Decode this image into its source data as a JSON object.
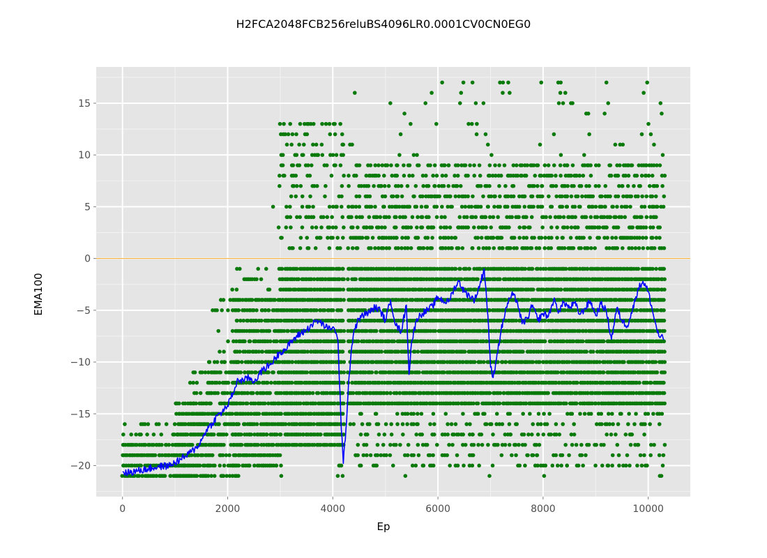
{
  "chart_data": {
    "type": "scatter",
    "title": "H2FCA2048FCB256reluBS4096LR0.0001CV0CN0EG0",
    "xlabel": "Ep",
    "ylabel": "EMA100",
    "xlim": [
      -500,
      10800
    ],
    "ylim": [
      -23,
      18.5
    ],
    "x_ticks": [
      0,
      2000,
      4000,
      6000,
      8000,
      10000
    ],
    "x_tick_labels": [
      "0",
      "2000",
      "4000",
      "6000",
      "8000",
      "10000"
    ],
    "y_ticks": [
      15,
      10,
      5,
      0,
      -5,
      -10,
      -15,
      -20
    ],
    "y_tick_labels": [
      "15",
      "10",
      "5",
      "0",
      "−5",
      "−10",
      "−15",
      "−20"
    ],
    "grid": true,
    "reference_line": {
      "y": 0,
      "color": "#f5a623"
    },
    "series": [
      {
        "kind": "scatter",
        "color": "#0a7a0a",
        "description_of_distribution": "episode scores, integers from -21 to 17, one per episode, over 0 to 10300 episodes",
        "bands": [
          {
            "x": [
              0,
              1300
            ],
            "y": [
              -21,
              -18
            ],
            "density": 0.9
          },
          {
            "x": [
              0,
              1300
            ],
            "y": [
              -17,
              -16
            ],
            "density": 0.2
          },
          {
            "x": [
              1000,
              1600
            ],
            "y": [
              -21,
              -14
            ],
            "density": 0.85
          },
          {
            "x": [
              1300,
              1700
            ],
            "y": [
              -17,
              -11
            ],
            "density": 0.3
          },
          {
            "x": [
              1600,
              2200
            ],
            "y": [
              -21,
              -10
            ],
            "density": 0.6
          },
          {
            "x": [
              1700,
              2100
            ],
            "y": [
              -9,
              -4
            ],
            "density": 0.15
          },
          {
            "x": [
              2100,
              3000
            ],
            "y": [
              -20,
              -4
            ],
            "density": 0.8
          },
          {
            "x": [
              2100,
              3000
            ],
            "y": [
              -3,
              -1
            ],
            "density": 0.25
          },
          {
            "x": [
              2100,
              3000
            ],
            "y": [
              1,
              6
            ],
            "density": 0.03
          },
          {
            "x": [
              3000,
              4200
            ],
            "y": [
              -18,
              -1
            ],
            "density": 0.95
          },
          {
            "x": [
              3000,
              4200
            ],
            "y": [
              1,
              13
            ],
            "density": 0.25
          },
          {
            "x": [
              4050,
              4250
            ],
            "y": [
              -21,
              -20
            ],
            "density": 0.5
          },
          {
            "x": [
              4300,
              10300
            ],
            "y": [
              -14,
              -1
            ],
            "density": 0.95
          },
          {
            "x": [
              4300,
              10300
            ],
            "y": [
              -20,
              -15
            ],
            "density": 0.25
          },
          {
            "x": [
              4300,
              10300
            ],
            "y": [
              1,
              9
            ],
            "density": 0.45
          },
          {
            "x": [
              4300,
              10300
            ],
            "y": [
              10,
              17
            ],
            "density": 0.04
          }
        ],
        "outliers": [
          {
            "x": 3020,
            "y": -21
          },
          {
            "x": 5380,
            "y": -21
          },
          {
            "x": 6980,
            "y": -21
          },
          {
            "x": 8020,
            "y": -21
          },
          {
            "x": 10220,
            "y": -21
          },
          {
            "x": 10250,
            "y": -21
          },
          {
            "x": 6080,
            "y": 17
          },
          {
            "x": 7180,
            "y": 17
          },
          {
            "x": 9980,
            "y": 17
          },
          {
            "x": 6440,
            "y": 16
          },
          {
            "x": 6420,
            "y": 15
          },
          {
            "x": 6720,
            "y": 15
          },
          {
            "x": 8300,
            "y": 15
          },
          {
            "x": 8380,
            "y": 15
          },
          {
            "x": 8530,
            "y": 15
          }
        ]
      },
      {
        "kind": "line",
        "name": "EMA100",
        "color": "#0000ff",
        "x": [
          0,
          100,
          300,
          500,
          700,
          900,
          1000,
          1100,
          1200,
          1300,
          1400,
          1500,
          1600,
          1700,
          1800,
          1900,
          2000,
          2100,
          2200,
          2300,
          2400,
          2500,
          2600,
          2700,
          2800,
          2900,
          3000,
          3100,
          3200,
          3300,
          3400,
          3500,
          3600,
          3700,
          3800,
          3900,
          4000,
          4050,
          4100,
          4150,
          4200,
          4250,
          4300,
          4350,
          4400,
          4500,
          4600,
          4700,
          4800,
          4900,
          5000,
          5100,
          5200,
          5300,
          5400,
          5450,
          5500,
          5600,
          5700,
          5800,
          5900,
          6000,
          6100,
          6200,
          6300,
          6400,
          6500,
          6600,
          6700,
          6800,
          6880,
          6950,
          7000,
          7050,
          7100,
          7200,
          7300,
          7400,
          7500,
          7600,
          7700,
          7800,
          7900,
          8000,
          8100,
          8200,
          8300,
          8400,
          8500,
          8600,
          8700,
          8800,
          8900,
          9000,
          9100,
          9200,
          9300,
          9400,
          9500,
          9600,
          9700,
          9800,
          9900,
          10000,
          10100,
          10200,
          10300
        ],
        "y": [
          -20.6,
          -20.7,
          -20.5,
          -20.3,
          -20.1,
          -20.0,
          -19.7,
          -19.4,
          -19.1,
          -18.7,
          -18.3,
          -17.6,
          -16.5,
          -16.0,
          -15.2,
          -14.8,
          -14.2,
          -13.0,
          -11.7,
          -11.8,
          -11.5,
          -11.9,
          -11.2,
          -10.6,
          -10.3,
          -9.7,
          -9.0,
          -8.8,
          -8.1,
          -7.6,
          -7.2,
          -6.9,
          -6.4,
          -6.0,
          -6.3,
          -6.8,
          -6.6,
          -7.2,
          -8.0,
          -15.0,
          -19.8,
          -16.5,
          -12.0,
          -9.0,
          -7.0,
          -5.8,
          -5.4,
          -5.2,
          -4.7,
          -5.0,
          -6.0,
          -4.0,
          -6.5,
          -7.0,
          -4.5,
          -11.2,
          -8.0,
          -5.8,
          -5.3,
          -5.0,
          -4.6,
          -3.7,
          -4.1,
          -4.2,
          -3.0,
          -2.2,
          -3.2,
          -3.6,
          -4.0,
          -2.5,
          -1.0,
          -5.5,
          -10.5,
          -11.5,
          -10.0,
          -7.0,
          -4.7,
          -3.5,
          -4.0,
          -6.3,
          -5.8,
          -4.5,
          -6.0,
          -5.3,
          -5.6,
          -4.0,
          -5.1,
          -4.2,
          -4.8,
          -4.3,
          -5.4,
          -4.8,
          -4.1,
          -5.5,
          -4.4,
          -5.0,
          -7.8,
          -4.8,
          -6.0,
          -6.5,
          -5.0,
          -3.0,
          -2.2,
          -3.2,
          -5.5,
          -7.5,
          -7.8
        ]
      }
    ]
  }
}
